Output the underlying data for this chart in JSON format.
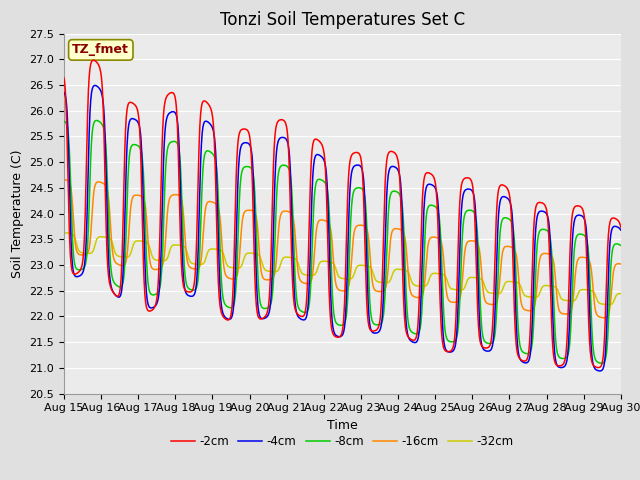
{
  "title": "Tonzi Soil Temperatures Set C",
  "xlabel": "Time",
  "ylabel": "Soil Temperature (C)",
  "ylim": [
    20.5,
    27.5
  ],
  "annotation": "TZ_fmet",
  "legend_labels": [
    "-2cm",
    "-4cm",
    "-8cm",
    "-16cm",
    "-32cm"
  ],
  "line_colors": [
    "#ff0000",
    "#0000ee",
    "#00cc00",
    "#ff8800",
    "#cccc00"
  ],
  "bg_color": "#e0e0e0",
  "plot_bg_color": "#ebebeb",
  "grid_color": "#ffffff",
  "title_fontsize": 12,
  "label_fontsize": 9,
  "tick_fontsize": 8
}
